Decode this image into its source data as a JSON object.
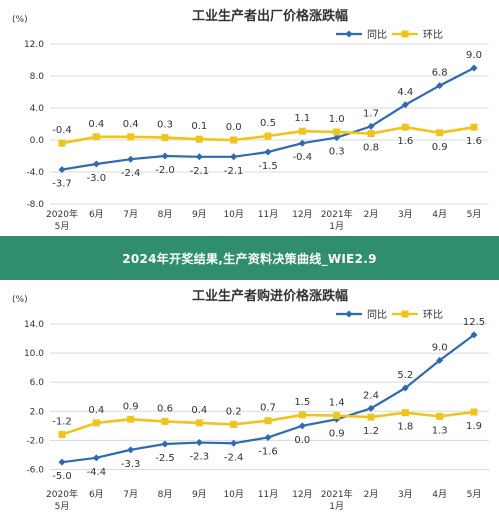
{
  "banner": {
    "text": "2024年开奖结果,生产资料决策曲线_WIE2.9"
  },
  "colors": {
    "series_yoy": "#2e6ab4",
    "series_mom": "#f0c419",
    "banner_bg": "#2e8e6e"
  },
  "chart_data": [
    {
      "type": "line",
      "title": "工业生产者出厂价格涨跌幅",
      "ylabel": "(%)",
      "ylim": [
        -8,
        12
      ],
      "yticks": [
        "12.0",
        "8.0",
        "4.0",
        "0.0",
        "-4.0",
        "-8.0"
      ],
      "ytick_values": [
        12,
        8,
        4,
        0,
        -4,
        -8
      ],
      "categories": [
        "2020年\n5月",
        "6月",
        "7月",
        "8月",
        "9月",
        "10月",
        "11月",
        "12月",
        "2021年\n1月",
        "2月",
        "3月",
        "4月",
        "5月"
      ],
      "grid": true,
      "legend": "top-right",
      "series": [
        {
          "name": "同比",
          "color": "#2e6ab4",
          "marker": "diamond",
          "values": [
            -3.7,
            -3.0,
            -2.4,
            -2.0,
            -2.1,
            -2.1,
            -1.5,
            -0.4,
            0.3,
            1.7,
            4.4,
            6.8,
            9.0
          ],
          "labels": [
            "-3.7",
            "-3.0",
            "-2.4",
            "-2.0",
            "-2.1",
            "-2.1",
            "-1.5",
            "-0.4",
            "0.3",
            "1.7",
            "4.4",
            "6.8",
            "9.0"
          ]
        },
        {
          "name": "环比",
          "color": "#f0c419",
          "marker": "square",
          "values": [
            -0.4,
            0.4,
            0.4,
            0.3,
            0.1,
            0.0,
            0.5,
            1.1,
            1.0,
            0.8,
            1.6,
            0.9,
            1.6
          ],
          "labels": [
            "-0.4",
            "0.4",
            "0.4",
            "0.3",
            "0.1",
            "0.0",
            "0.5",
            "1.1",
            "1.0",
            "0.8",
            "1.6",
            "0.9",
            "1.6"
          ]
        }
      ]
    },
    {
      "type": "line",
      "title": "工业生产者购进价格涨跌幅",
      "ylabel": "(%)",
      "ylim": [
        -8,
        14
      ],
      "yticks": [
        "14.0",
        "10.0",
        "6.0",
        "2.0",
        "-2.0",
        "-6.0"
      ],
      "ytick_values": [
        14,
        10,
        6,
        2,
        -2,
        -6
      ],
      "categories": [
        "2020年\n5月",
        "6月",
        "7月",
        "8月",
        "9月",
        "10月",
        "11月",
        "12月",
        "2021年\n1月",
        "2月",
        "3月",
        "4月",
        "5月"
      ],
      "grid": true,
      "legend": "top-right",
      "series": [
        {
          "name": "同比",
          "color": "#2e6ab4",
          "marker": "diamond",
          "values": [
            -5.0,
            -4.4,
            -3.3,
            -2.5,
            -2.3,
            -2.4,
            -1.6,
            0.0,
            0.9,
            2.4,
            5.2,
            9.0,
            12.5
          ],
          "labels": [
            "-5.0",
            "-4.4",
            "-3.3",
            "-2.5",
            "-2.3",
            "-2.4",
            "-1.6",
            "0.0",
            "0.9",
            "2.4",
            "5.2",
            "9.0",
            "12.5"
          ]
        },
        {
          "name": "环比",
          "color": "#f0c419",
          "marker": "square",
          "values": [
            -1.2,
            0.4,
            0.9,
            0.6,
            0.4,
            0.2,
            0.7,
            1.5,
            1.4,
            1.2,
            1.8,
            1.3,
            1.9
          ],
          "labels": [
            "-1.2",
            "0.4",
            "0.9",
            "0.6",
            "0.4",
            "0.2",
            "0.7",
            "1.5",
            "1.4",
            "1.2",
            "1.8",
            "1.3",
            "1.9"
          ]
        }
      ]
    }
  ]
}
